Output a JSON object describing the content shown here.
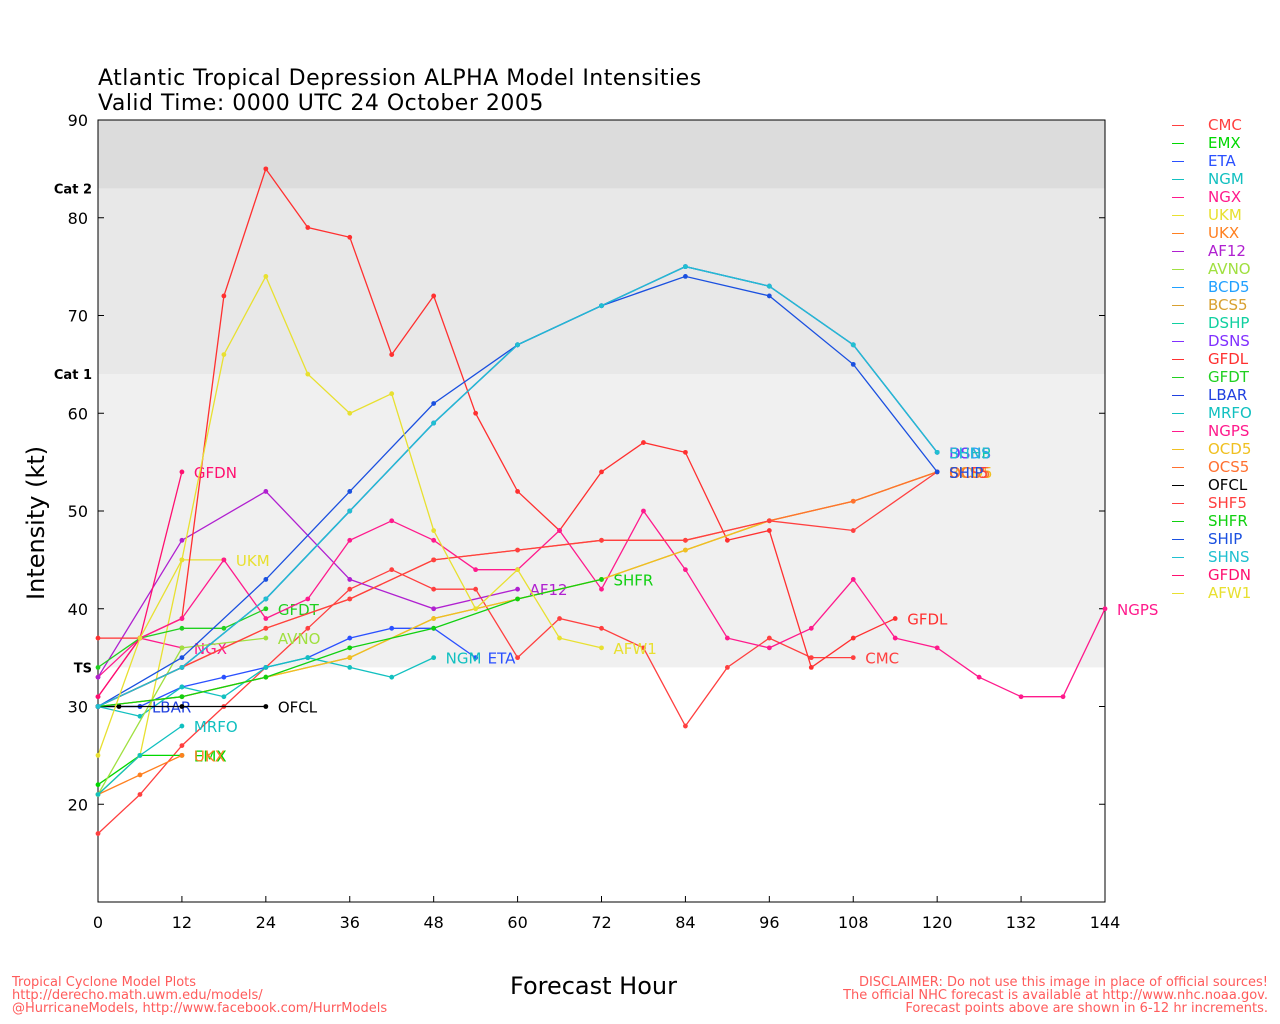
{
  "header": {
    "title": "Atlantic Tropical Depression ALPHA Model Intensities",
    "subtitle": "Valid Time: 0000 UTC 24 October 2005"
  },
  "footer": {
    "left_lines": [
      "Tropical Cyclone Model Plots",
      "http://derecho.math.uwm.edu/models/",
      "@HurricaneModels, http://www.facebook.com/HurrModels"
    ],
    "right_lines": [
      "DISCLAIMER: Do not use this image in place of official sources!",
      "The official NHC forecast is available at http://www.nhc.noaa.gov.",
      "Forecast points above are shown in 6-12 hr increments."
    ]
  },
  "chart_data": {
    "type": "line",
    "xlabel": "Forecast Hour",
    "ylabel": "Intensity (kt)",
    "xlim": [
      0,
      144
    ],
    "ylim": [
      10,
      90
    ],
    "xticks": [
      0,
      12,
      24,
      36,
      48,
      60,
      72,
      84,
      96,
      108,
      120,
      132,
      144
    ],
    "yticks": [
      20,
      30,
      40,
      50,
      60,
      70,
      80,
      90
    ],
    "category_bands": [
      {
        "label": "TS",
        "from": 34,
        "to": 64,
        "color": "#f0f0f0"
      },
      {
        "label": "Cat 1",
        "from": 64,
        "to": 83,
        "color": "#e8e8e8"
      },
      {
        "label": "Cat 2",
        "from": 83,
        "to": 90,
        "color": "#dcdcdc"
      }
    ],
    "series": [
      {
        "name": "CMC",
        "color": "#ff3f3f",
        "label": "CMC",
        "x": [
          0,
          6,
          12,
          18,
          24,
          30,
          36,
          42,
          48,
          54,
          60,
          66,
          72,
          78,
          84,
          90,
          96,
          102,
          108
        ],
        "y": [
          17,
          21,
          26,
          30,
          34,
          38,
          42,
          44,
          42,
          42,
          35,
          39,
          38,
          36,
          28,
          34,
          37,
          35,
          35
        ]
      },
      {
        "name": "EMX",
        "color": "#00d800",
        "label": "EMX",
        "x": [
          0,
          6,
          12
        ],
        "y": [
          22,
          25,
          25
        ]
      },
      {
        "name": "ETA",
        "color": "#2a50ff",
        "label": "ETA",
        "x": [
          0,
          6,
          12,
          18,
          24,
          30,
          36,
          42,
          48,
          54
        ],
        "y": [
          30,
          30,
          32,
          33,
          34,
          35,
          37,
          38,
          38,
          35
        ]
      },
      {
        "name": "NGM",
        "color": "#12c0c0",
        "label": "NGM",
        "x": [
          0,
          6,
          12,
          18,
          24,
          30,
          36,
          42,
          48
        ],
        "y": [
          30,
          29,
          32,
          31,
          34,
          35,
          34,
          33,
          35
        ]
      },
      {
        "name": "NGX",
        "color": "#ff1a8c",
        "label": "NGX",
        "x": [
          0,
          6,
          12
        ],
        "y": [
          33,
          37,
          36
        ]
      },
      {
        "name": "UKM",
        "color": "#e8e030",
        "label": "UKM",
        "x": [
          0,
          6,
          12,
          18
        ],
        "y": [
          21,
          25,
          45,
          45
        ]
      },
      {
        "name": "UKX",
        "color": "#ff8020",
        "label": "UKX",
        "x": [
          0,
          6,
          12
        ],
        "y": [
          21,
          23,
          25
        ]
      },
      {
        "name": "AF12",
        "color": "#b020d0",
        "label": "AF12",
        "x": [
          0,
          12,
          24,
          36,
          48,
          60
        ],
        "y": [
          33,
          47,
          52,
          43,
          40,
          42
        ]
      },
      {
        "name": "AVNO",
        "color": "#a0e040",
        "label": "AVNO",
        "x": [
          0,
          12,
          24
        ],
        "y": [
          21,
          36,
          37
        ]
      },
      {
        "name": "BCD5",
        "color": "#20a0ff",
        "label": "BCD5",
        "x": [
          0,
          12,
          24,
          36,
          48,
          60,
          72,
          84,
          96,
          108,
          120
        ],
        "y": [
          30,
          34,
          41,
          50,
          59,
          67,
          71,
          75,
          73,
          67,
          56
        ]
      },
      {
        "name": "BCS5",
        "color": "#d8a030",
        "label": "BCS5",
        "x": [
          0,
          12,
          24,
          36,
          48,
          60,
          72,
          84,
          96,
          108,
          120
        ],
        "y": [
          30,
          31,
          33,
          35,
          39,
          41,
          43,
          46,
          49,
          51,
          54
        ]
      },
      {
        "name": "DSHP",
        "color": "#10d0a0",
        "label": "DSHP",
        "x": [
          0,
          12,
          24,
          36,
          48,
          60,
          72,
          84,
          96,
          108,
          120
        ],
        "y": [
          30,
          34,
          41,
          50,
          59,
          67,
          71,
          75,
          73,
          67,
          56
        ]
      },
      {
        "name": "DSNS",
        "color": "#8030ff",
        "label": "DSNS",
        "x": [
          0,
          12,
          24,
          36,
          48,
          60,
          72,
          84,
          96,
          108,
          120
        ],
        "y": [
          30,
          34,
          41,
          50,
          59,
          67,
          71,
          75,
          73,
          67,
          56
        ]
      },
      {
        "name": "GFDL",
        "color": "#ff3030",
        "label": "GFDL",
        "x": [
          0,
          6,
          12,
          18,
          24,
          30,
          36,
          42,
          48,
          54,
          60,
          66,
          72,
          78,
          84,
          90,
          96,
          102,
          108,
          114
        ],
        "y": [
          37,
          37,
          39,
          72,
          85,
          79,
          78,
          66,
          72,
          60,
          52,
          48,
          54,
          57,
          56,
          47,
          48,
          34,
          37,
          39
        ]
      },
      {
        "name": "GFDT",
        "color": "#20d020",
        "label": "GFDT",
        "x": [
          0,
          6,
          12,
          18,
          24
        ],
        "y": [
          34,
          37,
          38,
          38,
          40
        ]
      },
      {
        "name": "LBAR",
        "color": "#2040e0",
        "label": "LBAR",
        "x": [
          0,
          6
        ],
        "y": [
          30,
          30
        ]
      },
      {
        "name": "MRFO",
        "color": "#10c0c0",
        "label": "MRFO",
        "x": [
          0,
          6,
          12
        ],
        "y": [
          21,
          25,
          28
        ]
      },
      {
        "name": "NGPS",
        "color": "#ff1a8c",
        "label": "NGPS",
        "x": [
          0,
          6,
          12,
          18,
          24,
          30,
          36,
          42,
          48,
          54,
          60,
          66,
          72,
          78,
          84,
          90,
          96,
          102,
          108,
          114,
          120,
          126,
          132,
          138,
          144
        ],
        "y": [
          31,
          37,
          39,
          45,
          39,
          41,
          47,
          49,
          47,
          44,
          44,
          48,
          42,
          50,
          44,
          37,
          36,
          38,
          43,
          37,
          36,
          33,
          31,
          31,
          40
        ]
      },
      {
        "name": "OCD5",
        "color": "#f0c020",
        "label": "OCD5",
        "x": [
          0,
          12,
          24,
          36,
          48,
          60,
          72,
          84,
          96,
          108,
          120
        ],
        "y": [
          30,
          31,
          33,
          35,
          39,
          41,
          43,
          46,
          49,
          51,
          54
        ]
      },
      {
        "name": "OCS5",
        "color": "#ff7030",
        "label": "OCS5",
        "x": [
          0,
          12,
          24,
          36,
          48,
          60,
          72,
          84,
          96,
          108,
          120
        ],
        "y": [
          30,
          34,
          38,
          41,
          45,
          46,
          47,
          47,
          49,
          51,
          54
        ]
      },
      {
        "name": "OFCL",
        "color": "#000000",
        "label": "OFCL",
        "x": [
          0,
          3,
          12,
          24
        ],
        "y": [
          30,
          30,
          30,
          30
        ]
      },
      {
        "name": "SHF5",
        "color": "#ff4040",
        "label": "SHF5",
        "x": [
          0,
          12,
          24,
          36,
          48,
          60,
          72,
          84,
          96,
          108,
          120
        ],
        "y": [
          30,
          34,
          38,
          41,
          45,
          46,
          47,
          47,
          49,
          48,
          54
        ]
      },
      {
        "name": "SHFR",
        "color": "#10d010",
        "label": "SHFR",
        "x": [
          0,
          12,
          24,
          36,
          48,
          60,
          72
        ],
        "y": [
          30,
          31,
          33,
          36,
          38,
          41,
          43
        ]
      },
      {
        "name": "SHIP",
        "color": "#1a50e0",
        "label": "SHIP",
        "x": [
          0,
          12,
          24,
          36,
          48,
          60,
          72,
          84,
          96,
          108,
          120
        ],
        "y": [
          30,
          35,
          43,
          52,
          61,
          67,
          71,
          74,
          72,
          65,
          54
        ]
      },
      {
        "name": "SHNS",
        "color": "#20c0d0",
        "label": "SHNS",
        "x": [
          0,
          12,
          24,
          36,
          48,
          60,
          72,
          84,
          96,
          108,
          120
        ],
        "y": [
          30,
          34,
          41,
          50,
          59,
          67,
          71,
          75,
          73,
          67,
          56
        ]
      },
      {
        "name": "GFDN",
        "color": "#ff1070",
        "label": "GFDN",
        "x": [
          0,
          6,
          12
        ],
        "y": [
          31,
          37,
          54
        ]
      },
      {
        "name": "AFW1",
        "color": "#e8e030",
        "label": "AFW1",
        "x": [
          0,
          6,
          12,
          18,
          24,
          30,
          36,
          42,
          48,
          54,
          60,
          66,
          72
        ],
        "y": [
          25,
          37,
          45,
          66,
          74,
          64,
          60,
          62,
          48,
          40,
          44,
          37,
          36
        ]
      }
    ]
  }
}
